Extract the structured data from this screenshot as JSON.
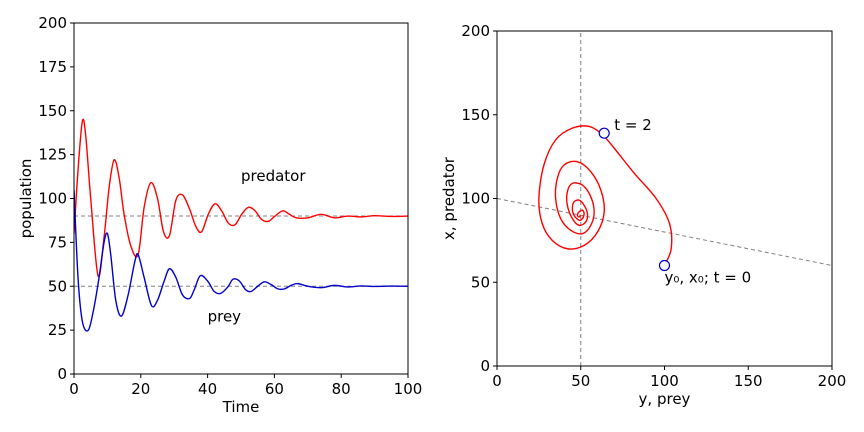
{
  "chart_data": [
    {
      "type": "line",
      "xlabel": "Time",
      "ylabel": "population",
      "xlim": [
        0,
        100
      ],
      "ylim": [
        0,
        200
      ],
      "xticks": [
        "0",
        "20",
        "40",
        "60",
        "80",
        "100"
      ],
      "yticks": [
        "0",
        "25",
        "50",
        "75",
        "100",
        "125",
        "150",
        "175",
        "200"
      ],
      "series": [
        {
          "name": "predator",
          "color": "#ff0000",
          "x": [
            0,
            1.2,
            2.5,
            3.5,
            5,
            7.2,
            9,
            10.5,
            12,
            13.5,
            15,
            17,
            19.2,
            21,
            23,
            25,
            26.8,
            28.6,
            30.5,
            32.5,
            34.6,
            36.5,
            38.2,
            40.2,
            42.2,
            44.2,
            46.2,
            48.2,
            50.2,
            52.2,
            54.2,
            56.2,
            58.2,
            60.2,
            62.5,
            64.5,
            66.5,
            70,
            74,
            78,
            82,
            86,
            90,
            95,
            100
          ],
          "y": [
            80,
            116,
            144,
            136,
            100,
            56,
            78,
            106,
            122,
            112,
            91,
            73,
            68,
            95,
            109,
            100,
            81,
            79,
            99,
            102,
            94,
            84,
            81,
            91,
            97,
            93,
            86,
            85,
            91,
            95,
            93,
            88,
            87,
            90,
            93,
            91,
            89,
            89,
            91,
            89,
            90,
            89.5,
            90.2,
            89.8,
            90
          ]
        },
        {
          "name": "prey",
          "color": "#0000cc",
          "x": [
            0,
            1.2,
            2.5,
            4.3,
            6,
            7.5,
            9,
            10,
            11,
            12.5,
            14.2,
            16.2,
            18.2,
            19.2,
            21,
            23.2,
            25,
            27,
            28.6,
            30.5,
            32.5,
            34.6,
            36,
            37.8,
            40,
            42,
            44,
            46.2,
            47.6,
            49.5,
            51.4,
            53,
            55,
            57,
            59,
            61,
            63,
            65,
            67,
            70,
            74,
            78,
            82,
            86,
            90,
            95,
            100
          ],
          "y": [
            105,
            55,
            30,
            25,
            38,
            55,
            75,
            80,
            68,
            42,
            33,
            45,
            64,
            68,
            55,
            39,
            42,
            53,
            60,
            55,
            45,
            43,
            48,
            56,
            53,
            47,
            46,
            50,
            54,
            53,
            48,
            47,
            50,
            52.5,
            51,
            48.5,
            48.5,
            50.5,
            51.5,
            50,
            49.2,
            50.5,
            49.6,
            50.2,
            49.9,
            50.1,
            50
          ]
        }
      ],
      "reference_lines": [
        {
          "orientation": "horizontal",
          "value": 90,
          "style": "dashed",
          "color": "#808080"
        },
        {
          "orientation": "horizontal",
          "value": 50,
          "style": "dashed",
          "color": "#808080"
        }
      ],
      "annotations": [
        {
          "text": "predator",
          "x": 50,
          "y": 110
        },
        {
          "text": "prey",
          "x": 40,
          "y": 30
        }
      ]
    },
    {
      "type": "line",
      "xlabel": "y, prey",
      "ylabel": "x, predator",
      "xlim": [
        0,
        200
      ],
      "ylim": [
        0,
        200
      ],
      "xticks": [
        "0",
        "50",
        "100",
        "150",
        "200"
      ],
      "yticks": [
        "0",
        "50",
        "100",
        "150",
        "200"
      ],
      "series": [
        {
          "name": "",
          "color": "#ff0000",
          "x": [
            100,
            104,
            103,
            95,
            82,
            70,
            63,
            55,
            45,
            35,
            28,
            25,
            27,
            33,
            42,
            52,
            60,
            64,
            62,
            56,
            48,
            40,
            36,
            35,
            38,
            44,
            51,
            56,
            58,
            56,
            51,
            45,
            42,
            42,
            45,
            49,
            53,
            54,
            52,
            49,
            46,
            45,
            46,
            49,
            51,
            52,
            51,
            49,
            48,
            49,
            50
          ],
          "y": [
            60,
            70,
            85,
            100,
            115,
            130,
            138,
            143,
            142,
            135,
            120,
            100,
            85,
            75,
            70,
            72,
            80,
            92,
            105,
            116,
            122,
            120,
            112,
            100,
            88,
            81,
            79,
            84,
            92,
            101,
            108,
            109,
            104,
            96,
            88,
            84,
            86,
            91,
            96,
            99,
            98,
            94,
            90,
            87,
            88,
            91,
            93,
            92,
            90,
            89,
            90
          ]
        }
      ],
      "reference_lines": [
        {
          "orientation": "vertical",
          "value": 50,
          "style": "dashed",
          "color": "#808080"
        },
        {
          "orientation": "segment",
          "from": [
            0,
            100
          ],
          "to": [
            200,
            60
          ],
          "style": "dashed",
          "color": "#808080"
        }
      ],
      "markers": [
        {
          "x": 100,
          "y": 60,
          "face": "#ffffff",
          "edge": "#0000cc"
        },
        {
          "x": 64,
          "y": 139,
          "face": "#ffffff",
          "edge": "#0000cc"
        }
      ],
      "annotations": [
        {
          "text": "t = 2",
          "x": 70,
          "y": 141
        },
        {
          "text": "y₀, x₀;  t = 0",
          "x": 100,
          "y": 50
        }
      ]
    }
  ]
}
